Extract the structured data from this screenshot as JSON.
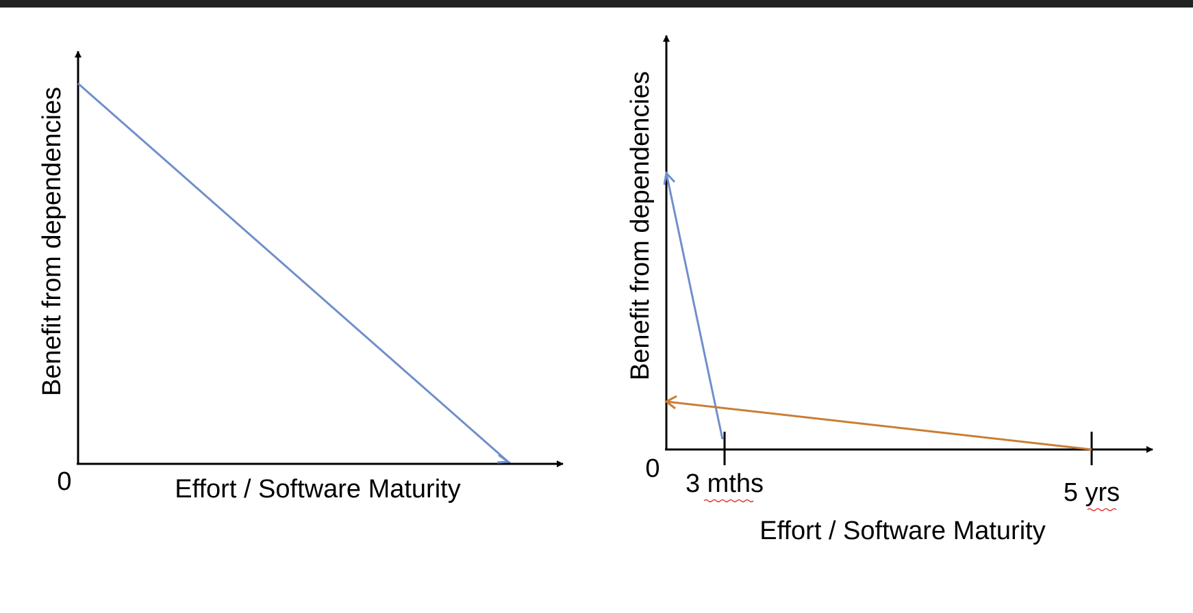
{
  "left_panel": {
    "y_axis_label": "Benefit from dependencies",
    "x_axis_label": "Effort / Software Maturity",
    "origin_label": "0"
  },
  "right_panel": {
    "y_axis_label": "Benefit from dependencies",
    "x_axis_label": "Effort / Software Maturity",
    "origin_label": "0",
    "tick_labels": [
      "3 mths",
      "5 yrs"
    ]
  }
}
